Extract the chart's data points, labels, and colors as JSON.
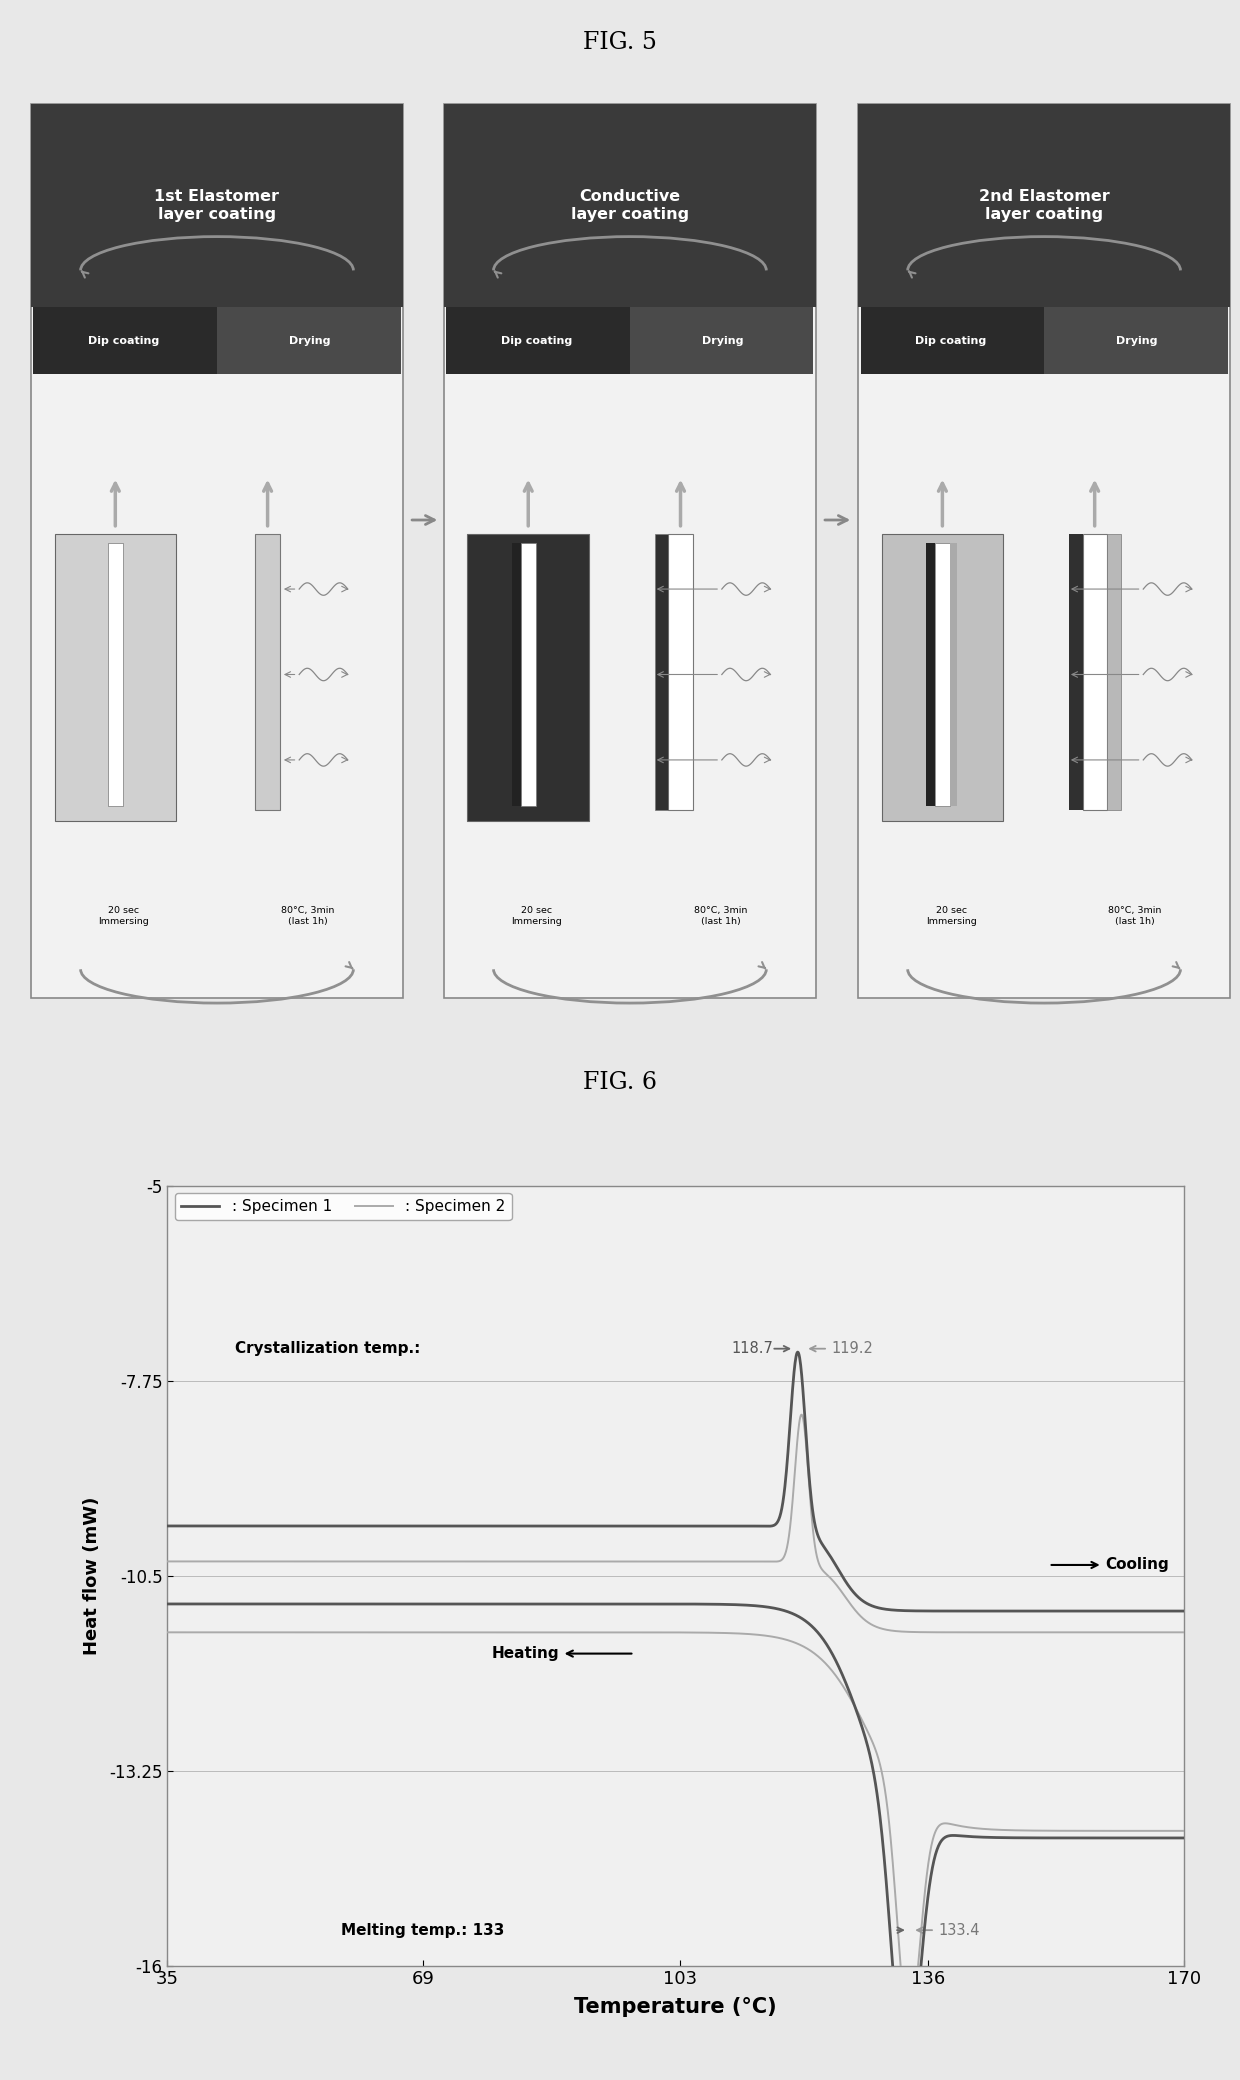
{
  "fig5_title": "FIG. 5",
  "fig6_title": "FIG. 6",
  "bg_color": "#e8e8e8",
  "panel_bg": "#f2f2f2",
  "panel_header_color": "#3a3a3a",
  "panel_subheader_left": "#2a2a2a",
  "panel_subheader_right": "#4a4a4a",
  "panels": [
    {
      "title": "1st Elastomer\nlayer coating",
      "liquid_color": "#d0d0d0",
      "fiber_layers": [
        "white"
      ]
    },
    {
      "title": "Conductive\nlayer coating",
      "liquid_color": "#303030",
      "fiber_layers": [
        "white",
        "black"
      ]
    },
    {
      "title": "2nd Elastomer\nlayer coating",
      "liquid_color": "#c0c0c0",
      "fiber_layers": [
        "white",
        "black",
        "gray"
      ]
    }
  ],
  "dip_text": [
    "20 sec\nImmersing",
    "80°C, 3min\n(last 1h)"
  ],
  "graph": {
    "xlim": [
      35,
      170
    ],
    "ylim": [
      -16,
      -5
    ],
    "xticks": [
      35,
      69,
      103,
      136,
      170
    ],
    "yticks": [
      -16,
      -13.25,
      -10.5,
      -7.75,
      -5
    ],
    "xlabel": "Temperature (°C)",
    "ylabel": "Heat flow (mW)",
    "legend1": ": Specimen 1",
    "legend2": ": Specimen 2",
    "cryst_label": "Crystallization temp.:",
    "cryst_temp1": "118.7",
    "cryst_temp2": "119.2",
    "melt_label": "Melting temp.: 133",
    "melt_temp2": "133.4",
    "cooling_label": "Cooling",
    "heating_label": "Heating"
  }
}
